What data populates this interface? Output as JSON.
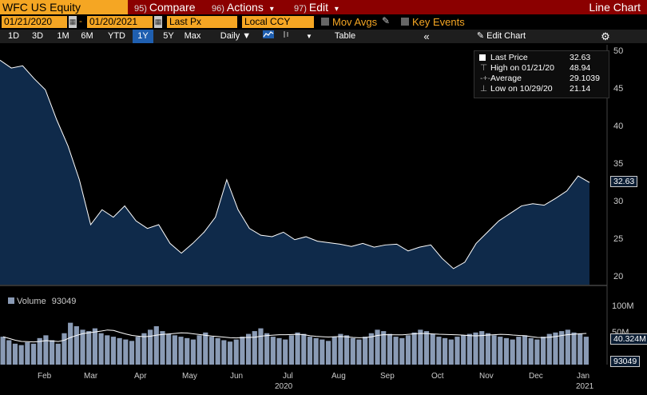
{
  "toolbar": {
    "ticker": "WFC US Equity",
    "compare_num": "95)",
    "compare_label": "Compare",
    "actions_num": "96)",
    "actions_label": "Actions",
    "actions_arrow": "▾",
    "edit_num": "97)",
    "edit_label": "Edit",
    "edit_arrow": "▾",
    "title": "Line Chart"
  },
  "controls": {
    "start_date": "01/21/2020",
    "end_date": "01/20/2021",
    "date_sep": "-",
    "field": "Last Px",
    "currency": "Local CCY",
    "mov_avgs": "Mov Avgs",
    "key_events": "Key Events"
  },
  "periods": {
    "items": [
      "1D",
      "3D",
      "1M",
      "6M",
      "YTD",
      "1Y",
      "5Y",
      "Max"
    ],
    "active": "1Y",
    "frequency": "Daily ▼",
    "table_label": "Table",
    "collapse": "«",
    "edit_chart": "Edit Chart",
    "settings_icon": "⚙"
  },
  "legend": {
    "last_price_label": "Last Price",
    "last_price_value": "32.63",
    "high_label": "High on 01/21/20",
    "high_value": "48.94",
    "average_label": "Average",
    "average_value": "29.1039",
    "low_label": "Low on 10/29/20",
    "low_value": "21.14"
  },
  "volume_legend": {
    "label": "Volume",
    "value": "93049"
  },
  "price_axis": {
    "ticks": [
      "50",
      "45",
      "40",
      "35",
      "30",
      "25",
      "20"
    ],
    "last_tag": "32.63"
  },
  "volume_axis": {
    "ticks": [
      "100M",
      "50M"
    ],
    "avg_tag": "40.324M",
    "last_tag": "93049"
  },
  "x_axis": {
    "months": [
      "Feb",
      "Mar",
      "Apr",
      "May",
      "Jun",
      "Jul",
      "Aug",
      "Sep",
      "Oct",
      "Nov",
      "Dec",
      "Jan"
    ],
    "year_2020": "2020",
    "year_2021": "2021"
  },
  "colors": {
    "accent": "#f5a623",
    "bar": "#8b0000",
    "area": "#0f2a4a",
    "line": "#ffffff",
    "volume": "#8a9bb5"
  },
  "chart_data": [
    {
      "type": "area",
      "title": "",
      "series": [
        {
          "x": [
            "2020-01-21",
            "2020-01-28",
            "2020-02-04",
            "2020-02-11",
            "2020-02-18",
            "2020-02-25",
            "2020-03-03",
            "2020-03-10",
            "2020-03-17",
            "2020-03-24",
            "2020-03-31",
            "2020-04-07",
            "2020-04-14",
            "2020-04-21",
            "2020-04-28",
            "2020-05-05",
            "2020-05-12",
            "2020-05-19",
            "2020-05-26",
            "2020-06-02",
            "2020-06-09",
            "2020-06-16",
            "2020-06-23",
            "2020-06-30",
            "2020-07-07",
            "2020-07-14",
            "2020-07-21",
            "2020-07-28",
            "2020-08-04",
            "2020-08-11",
            "2020-08-18",
            "2020-08-25",
            "2020-09-01",
            "2020-09-08",
            "2020-09-15",
            "2020-09-22",
            "2020-09-29",
            "2020-10-06",
            "2020-10-13",
            "2020-10-20",
            "2020-10-29",
            "2020-11-03",
            "2020-11-10",
            "2020-11-17",
            "2020-11-24",
            "2020-12-01",
            "2020-12-08",
            "2020-12-15",
            "2020-12-22",
            "2020-12-29",
            "2021-01-05",
            "2021-01-12",
            "2021-01-20"
          ],
          "values": [
            48.94,
            47.9,
            48.2,
            46.5,
            45.0,
            41.0,
            37.5,
            33.0,
            27.0,
            29.0,
            28.0,
            29.5,
            27.5,
            26.5,
            27.0,
            24.5,
            23.2,
            24.5,
            26.0,
            28.0,
            33.0,
            29.0,
            26.5,
            25.6,
            25.4,
            26.0,
            25.0,
            25.4,
            24.8,
            24.6,
            24.4,
            24.1,
            24.5,
            24.0,
            24.3,
            24.4,
            23.5,
            24.0,
            24.3,
            22.5,
            21.14,
            22.0,
            24.5,
            26.0,
            27.5,
            28.5,
            29.5,
            29.8,
            29.6,
            30.5,
            31.5,
            33.5,
            32.63
          ]
        }
      ],
      "ylim": [
        19,
        51
      ],
      "ylabel": "",
      "grid": false
    },
    {
      "type": "bar",
      "title": "",
      "series": [
        {
          "name": "Volume",
          "values": [
            40,
            35,
            30,
            28,
            32,
            30,
            38,
            42,
            35,
            30,
            45,
            60,
            55,
            50,
            48,
            52,
            45,
            42,
            40,
            38,
            36,
            34,
            40,
            45,
            50,
            55,
            48,
            44,
            42,
            40,
            38,
            36,
            42,
            46,
            40,
            38,
            35,
            33,
            36,
            40,
            44,
            48,
            52,
            45,
            40,
            38,
            36,
            42,
            46,
            44,
            40,
            38,
            36,
            34,
            40,
            44,
            42,
            38,
            36,
            40,
            45,
            50,
            48,
            44,
            40,
            38,
            42,
            46,
            50,
            48,
            44,
            40,
            38,
            36,
            40,
            42,
            44,
            46,
            48,
            45,
            42,
            40,
            38,
            36,
            40,
            42,
            38,
            36,
            40,
            44,
            46,
            48,
            50,
            46,
            44,
            40
          ]
        }
      ],
      "ylim": [
        0,
        110
      ],
      "ylabel": ""
    }
  ]
}
